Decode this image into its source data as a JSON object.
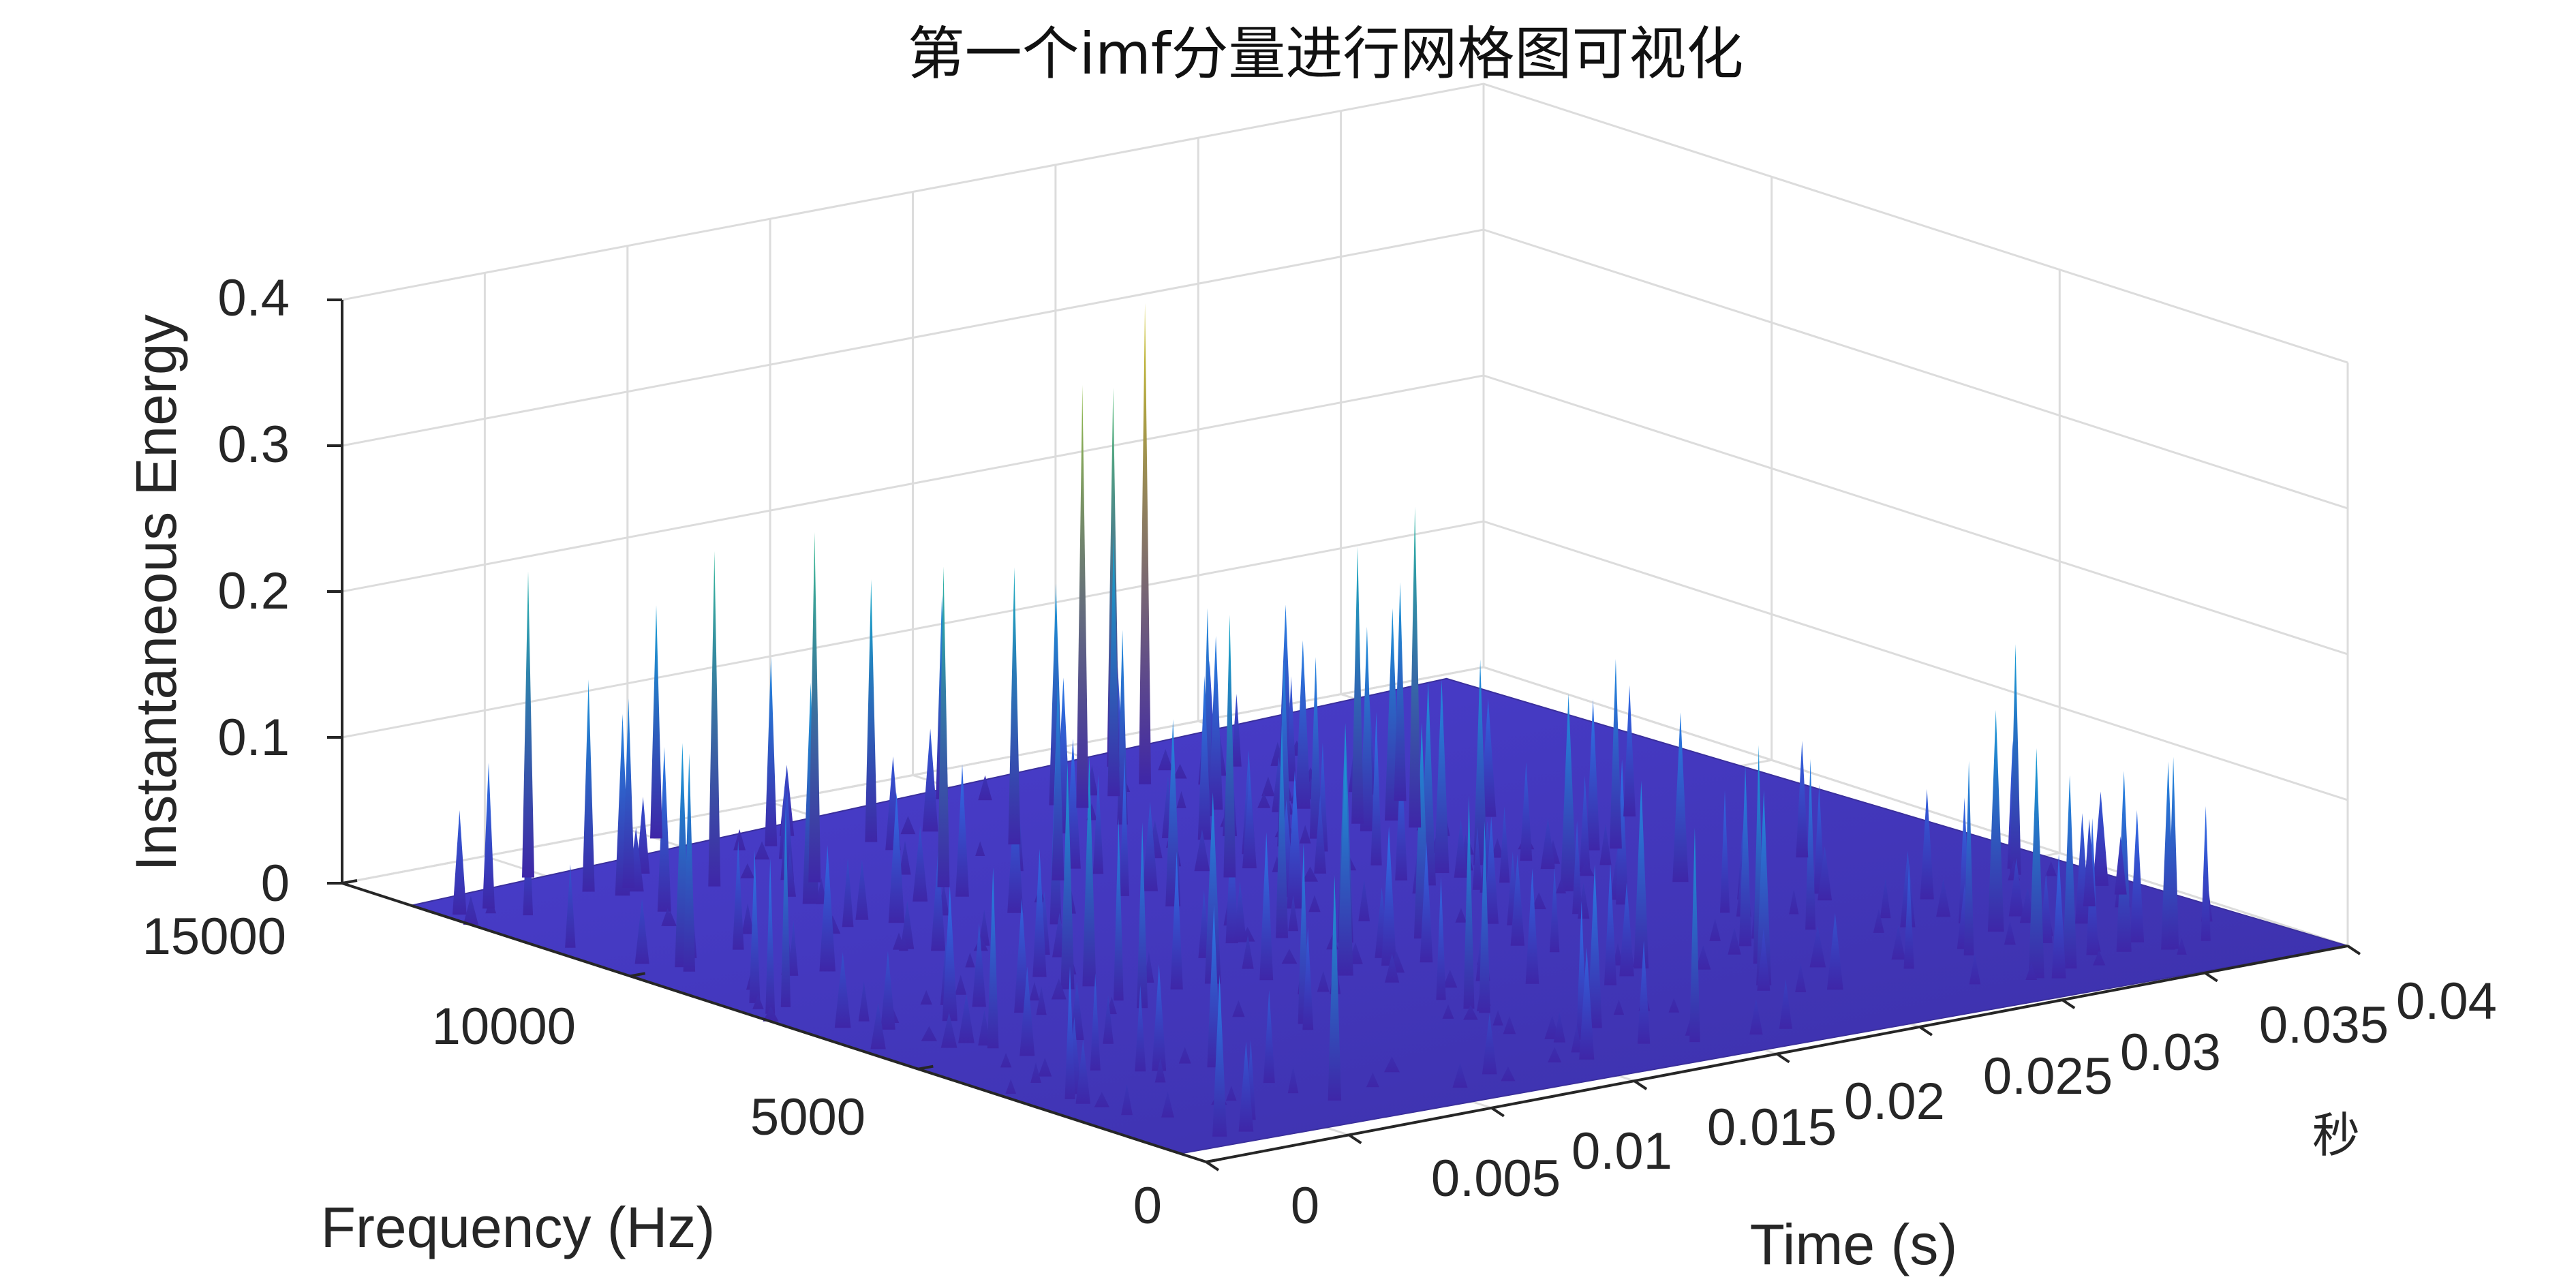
{
  "chart_data": {
    "type": "surface",
    "title": "第一个imf分量进行网格图可视化",
    "xlabel": "Time (s)",
    "ylabel": "Frequency (Hz)",
    "zlabel": "Instantaneous Energy",
    "x_unit_note": "秒",
    "xlim": [
      0,
      0.04
    ],
    "ylim": [
      0,
      15000
    ],
    "zlim": [
      0,
      0.4
    ],
    "x_ticks": [
      "0",
      "0.005",
      "0.01",
      "0.015",
      "0.02",
      "0.025",
      "0.03",
      "0.035",
      "0.04"
    ],
    "y_ticks": [
      "0",
      "5000",
      "10000",
      "15000"
    ],
    "z_ticks": [
      "0",
      "0.1",
      "0.2",
      "0.3",
      "0.4"
    ],
    "colormap": "parula",
    "grid": true,
    "peaks": [
      {
        "t": 0.0015,
        "f": 13200,
        "e": 0.1
      },
      {
        "t": 0.0045,
        "f": 14000,
        "e": 0.21
      },
      {
        "t": 0.006,
        "f": 13000,
        "e": 0.13
      },
      {
        "t": 0.008,
        "f": 12500,
        "e": 0.23
      },
      {
        "t": 0.01,
        "f": 14500,
        "e": 0.16
      },
      {
        "t": 0.0105,
        "f": 12000,
        "e": 0.24
      },
      {
        "t": 0.012,
        "f": 13500,
        "e": 0.13
      },
      {
        "t": 0.013,
        "f": 11000,
        "e": 0.22
      },
      {
        "t": 0.0145,
        "f": 13000,
        "e": 0.18
      },
      {
        "t": 0.016,
        "f": 10500,
        "e": 0.14
      },
      {
        "t": 0.0175,
        "f": 12000,
        "e": 0.19
      },
      {
        "t": 0.019,
        "f": 14000,
        "e": 0.14
      },
      {
        "t": 0.02,
        "f": 9500,
        "e": 0.18
      },
      {
        "t": 0.0215,
        "f": 12800,
        "e": 0.29
      },
      {
        "t": 0.023,
        "f": 13000,
        "e": 0.18
      },
      {
        "t": 0.0245,
        "f": 13200,
        "e": 0.33
      },
      {
        "t": 0.025,
        "f": 14000,
        "e": 0.26
      },
      {
        "t": 0.0265,
        "f": 10500,
        "e": 0.19
      },
      {
        "t": 0.0275,
        "f": 10000,
        "e": 0.22
      },
      {
        "t": 0.029,
        "f": 11000,
        "e": 0.15
      },
      {
        "t": 0.0305,
        "f": 8000,
        "e": 0.13
      },
      {
        "t": 0.033,
        "f": 9000,
        "e": 0.09
      },
      {
        "t": 0.034,
        "f": 6500,
        "e": 0.08
      },
      {
        "t": 0.037,
        "f": 3000,
        "e": 0.06
      },
      {
        "t": 0.0385,
        "f": 3200,
        "e": 0.04
      }
    ]
  }
}
